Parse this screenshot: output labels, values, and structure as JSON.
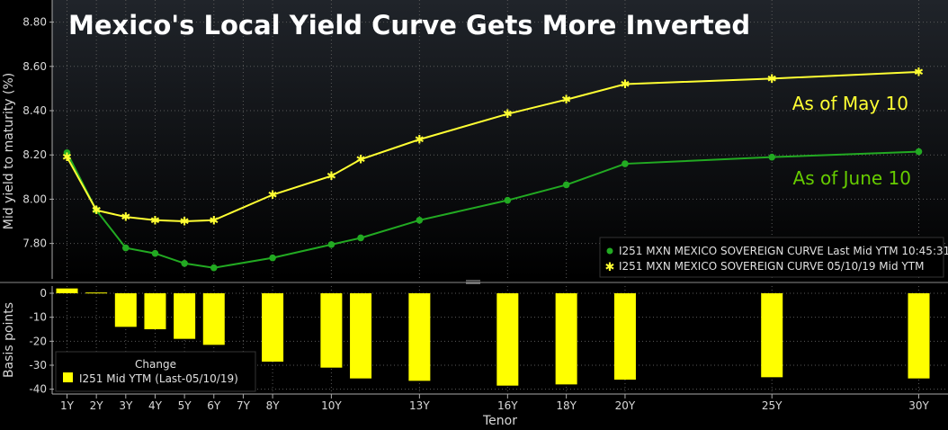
{
  "colors": {
    "background_top": "#20242a",
    "background_bottom": "#000000",
    "may_line": "#ffff33",
    "june_line": "#22aa22",
    "annotation_may": "#ffff33",
    "annotation_june": "#66cc00",
    "bars": "#ffff00",
    "text": "#d9d9d9",
    "grid": "#5a5a5a"
  },
  "chart_data": [
    {
      "type": "line",
      "title": "Mexico's Local Yield Curve Gets More Inverted",
      "ylabel": "Mid yield to maturity (%)",
      "ylim": [
        7.64,
        8.9
      ],
      "yticks": [
        7.8,
        8.0,
        8.2,
        8.4,
        8.6,
        8.8
      ],
      "ytick_labels": [
        "7.80",
        "8.00",
        "8.20",
        "8.40",
        "8.60",
        "8.80"
      ],
      "grid": true,
      "annotations": [
        {
          "text": "As of May 10",
          "series": 1
        },
        {
          "text": "As of June 10",
          "series": 0
        }
      ],
      "legend_position": "bottom-right",
      "series": [
        {
          "name": "I251 MXN MEXICO SOVEREIGN CURVE Last Mid YTM 10:45:31",
          "marker": "dot",
          "x": [
            1,
            2,
            3,
            4,
            5,
            6,
            8,
            10,
            11,
            13,
            16,
            18,
            20,
            25,
            30
          ],
          "y": [
            8.21,
            7.95,
            7.78,
            7.755,
            7.71,
            7.69,
            7.735,
            7.795,
            7.825,
            7.905,
            7.995,
            8.065,
            8.16,
            8.19,
            8.215
          ]
        },
        {
          "name": "I251 MXN MEXICO SOVEREIGN CURVE 05/10/19 Mid YTM",
          "marker": "star",
          "x": [
            1,
            2,
            3,
            4,
            5,
            6,
            8,
            10,
            11,
            13,
            16,
            18,
            20,
            25,
            30
          ],
          "y": [
            8.19,
            7.95,
            7.92,
            7.905,
            7.9,
            7.905,
            8.02,
            8.105,
            8.18,
            8.27,
            8.385,
            8.45,
            8.52,
            8.545,
            8.575
          ]
        }
      ]
    },
    {
      "type": "bar",
      "ylabel": "Basis points",
      "xlabel": "Tenor",
      "ylim": [
        -42,
        3
      ],
      "yticks": [
        0,
        -10,
        -20,
        -30,
        -40
      ],
      "ytick_labels": [
        "0",
        "-10",
        "-20",
        "-30",
        "-40"
      ],
      "grid": true,
      "legend_title": "Change",
      "legend_position": "bottom-left",
      "series": [
        {
          "name": "I251 Mid YTM (Last-05/10/19)",
          "x": [
            1,
            2,
            3,
            4,
            5,
            6,
            8,
            10,
            11,
            13,
            16,
            18,
            20,
            25,
            30
          ],
          "values": [
            2,
            0.3,
            -14,
            -15,
            -19,
            -21.5,
            -28.5,
            -31,
            -35.5,
            -36.5,
            -38.5,
            -38,
            -36,
            -35,
            -35.5
          ]
        }
      ],
      "x_tick_values": [
        1,
        2,
        3,
        4,
        5,
        6,
        7,
        8,
        10,
        13,
        16,
        18,
        20,
        25,
        30
      ],
      "x_tick_labels": [
        "1Y",
        "2Y",
        "3Y",
        "4Y",
        "5Y",
        "6Y",
        "7Y",
        "8Y",
        "10Y",
        "13Y",
        "16Y",
        "18Y",
        "20Y",
        "25Y",
        "30Y"
      ]
    }
  ]
}
